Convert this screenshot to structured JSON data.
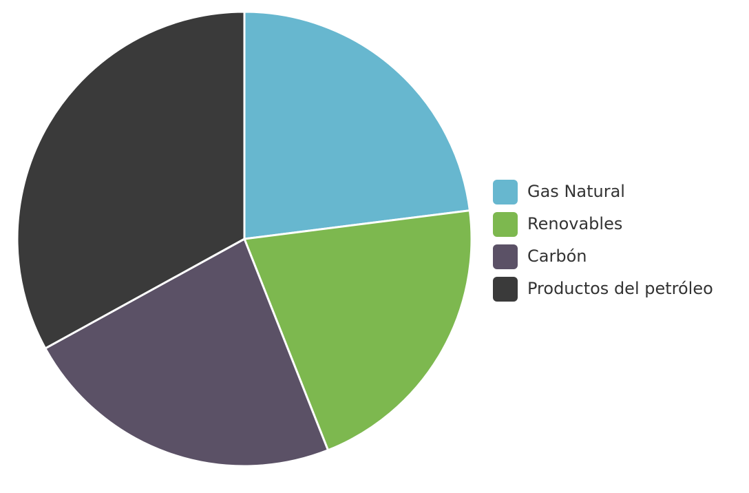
{
  "chart_data": {
    "type": "pie",
    "categories": [
      "Gas Natural",
      "Renovables",
      "Carbón",
      "Productos del petróleo"
    ],
    "values": [
      23,
      21,
      23,
      33
    ],
    "colors": [
      "#67b7cf",
      "#7db84f",
      "#5b5166",
      "#3a3a3a"
    ],
    "legend": "right"
  }
}
